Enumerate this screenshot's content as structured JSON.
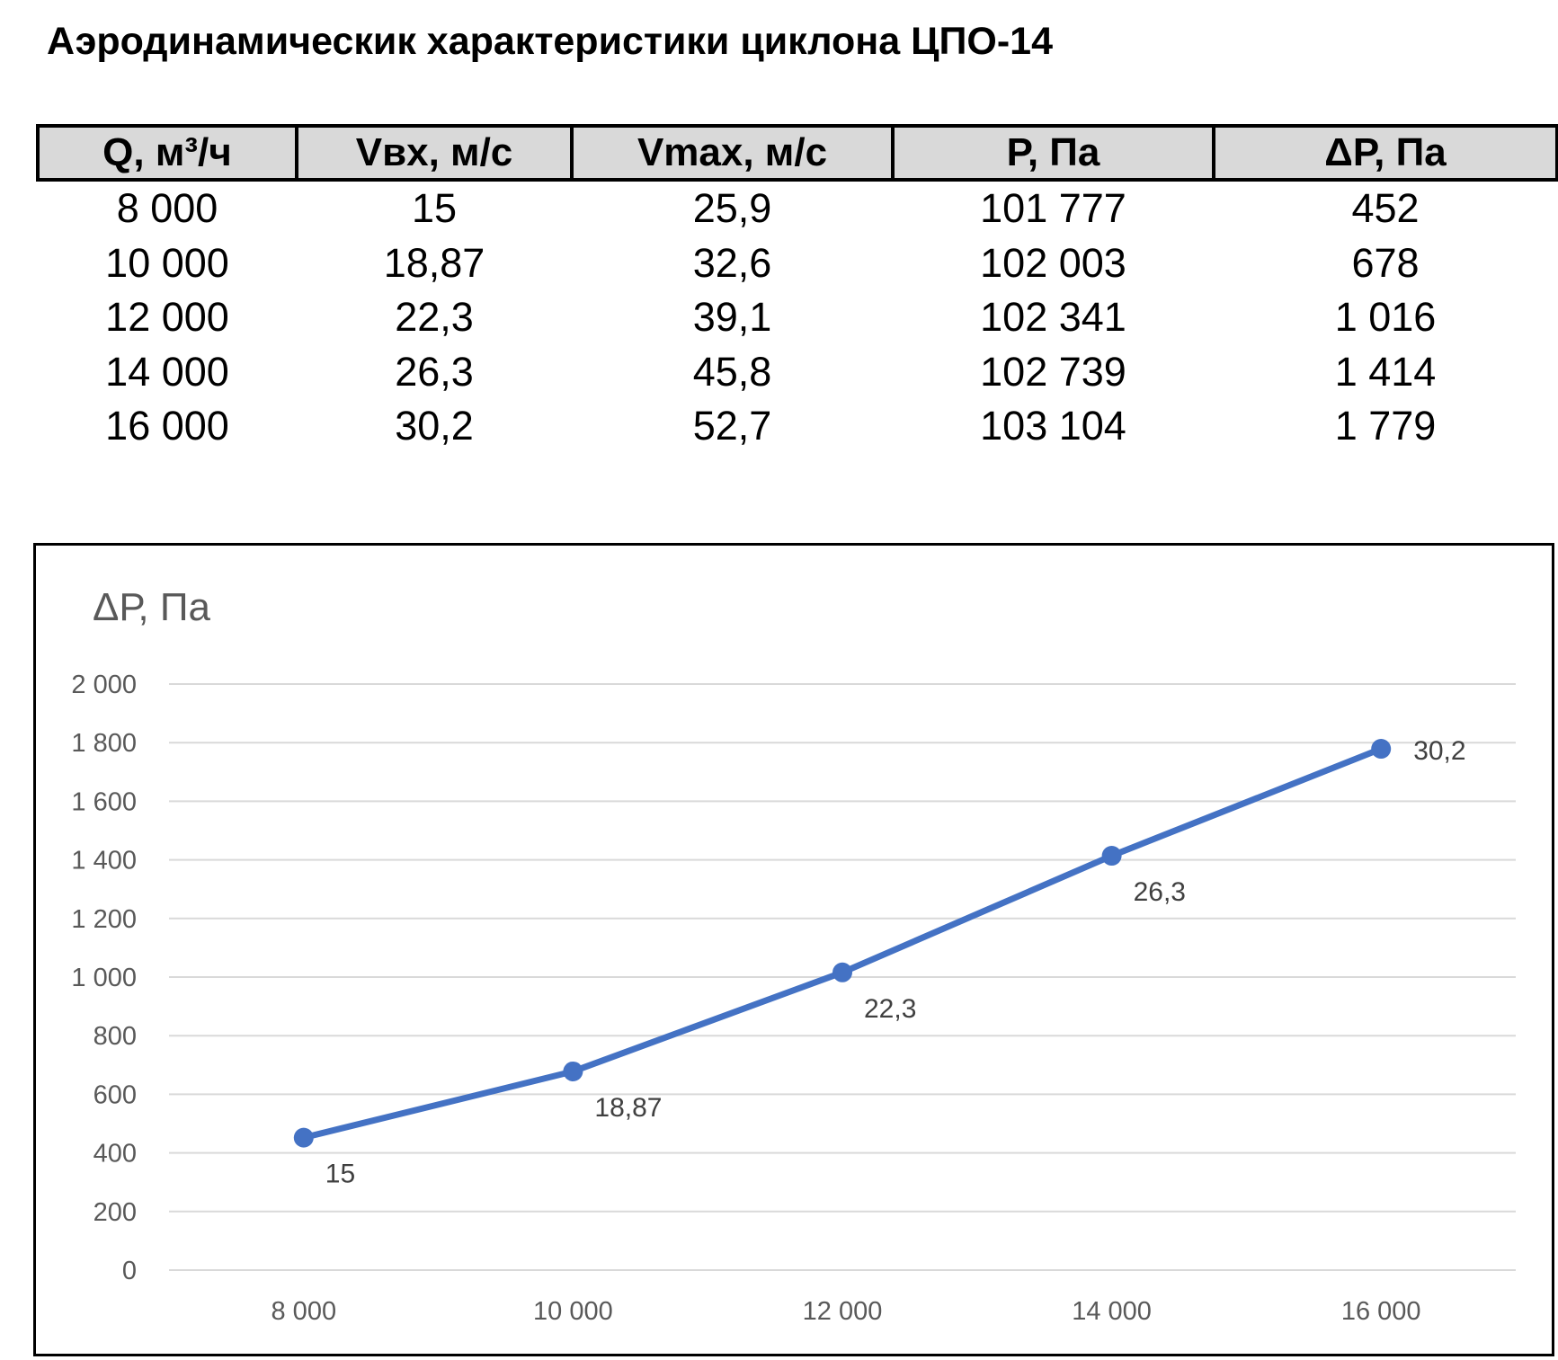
{
  "title": "Аэродинамическик характеристики циклона ЦПО-14",
  "table": {
    "headers": [
      "Q, м³/ч",
      "Vвх, м/с",
      "Vmax, м/с",
      "Р, Па",
      "ΔР, Па"
    ],
    "rows": [
      [
        "8 000",
        "15",
        "25,9",
        "101 777",
        "452"
      ],
      [
        "10 000",
        "18,87",
        "32,6",
        "102 003",
        "678"
      ],
      [
        "12 000",
        "22,3",
        "39,1",
        "102 341",
        "1 016"
      ],
      [
        "14 000",
        "26,3",
        "45,8",
        "102 739",
        "1 414"
      ],
      [
        "16 000",
        "30,2",
        "52,7",
        "103 104",
        "1 779"
      ]
    ]
  },
  "chart_data": {
    "type": "line",
    "title": "ΔР, Па",
    "xlabel": "",
    "ylabel": "",
    "categories": [
      "8 000",
      "10 000",
      "12 000",
      "14 000",
      "16 000"
    ],
    "series": [
      {
        "values": [
          452,
          678,
          1016,
          1414,
          1779
        ],
        "data_labels": [
          "15",
          "18,87",
          "22,3",
          "26,3",
          "30,2"
        ]
      }
    ],
    "ylim": [
      0,
      2000
    ],
    "yticks": [
      0,
      200,
      400,
      600,
      800,
      1000,
      1200,
      1400,
      1600,
      1800,
      2000
    ],
    "ytick_labels": [
      "0",
      "200",
      "400",
      "600",
      "800",
      "1 000",
      "1 200",
      "1 400",
      "1 600",
      "1 800",
      "2 000"
    ],
    "grid": true,
    "legend": "none",
    "color": "#4472c4"
  }
}
